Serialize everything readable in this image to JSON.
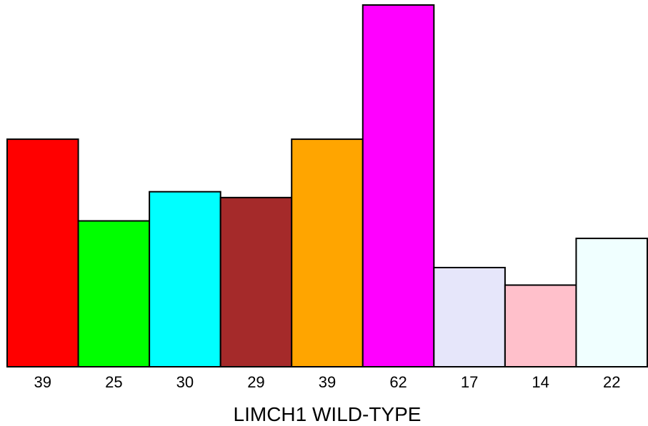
{
  "chart_data": {
    "type": "bar",
    "title": "",
    "xlabel": "LIMCH1 WILD-TYPE",
    "ylabel": "",
    "ylim": [
      0,
      62
    ],
    "grid": false,
    "legend": "none",
    "categories": [
      "39",
      "25",
      "30",
      "29",
      "39",
      "62",
      "17",
      "14",
      "22"
    ],
    "values": [
      39,
      25,
      30,
      29,
      39,
      62,
      17,
      14,
      22
    ],
    "colors": [
      "#ff0000",
      "#00ff00",
      "#00ffff",
      "#a52a2a",
      "#ffa500",
      "#ff00ff",
      "#e6e6fa",
      "#ffc0cb",
      "#f0ffff"
    ]
  }
}
